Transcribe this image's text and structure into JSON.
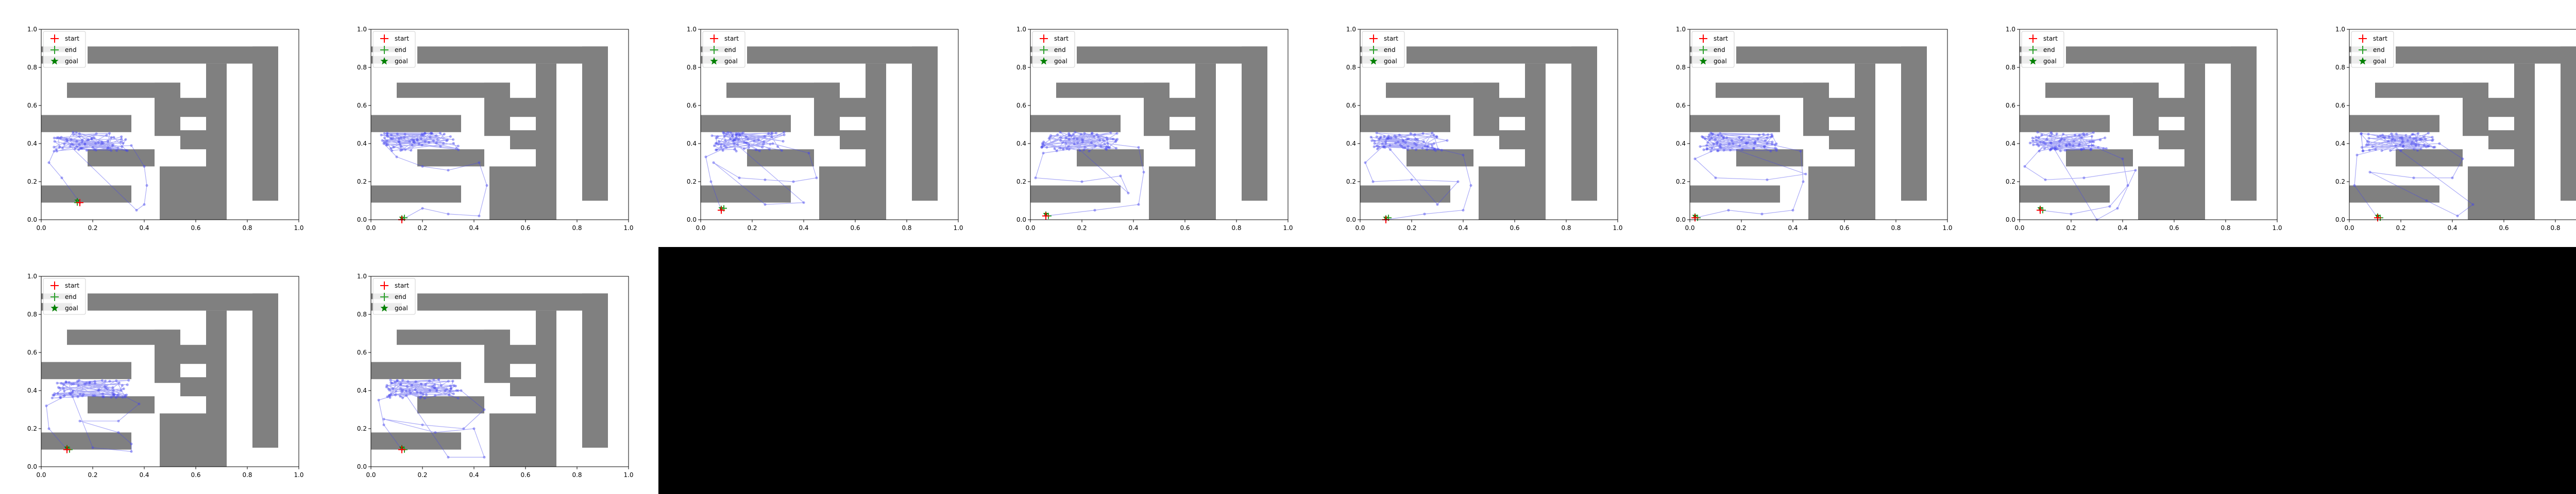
{
  "figure": {
    "panel_count": 10,
    "unused_area_color": "#000000"
  },
  "chart_data": {
    "type": "scatter",
    "title": "",
    "xlabel": "",
    "ylabel": "",
    "xlim": [
      0.0,
      1.0
    ],
    "ylim": [
      0.0,
      1.0
    ],
    "x_ticks": [
      "0.0",
      "0.2",
      "0.4",
      "0.6",
      "0.8",
      "1.0"
    ],
    "y_ticks": [
      "0.0",
      "0.2",
      "0.4",
      "0.6",
      "0.8",
      "1.0"
    ],
    "grid": false,
    "legend_position": "top-left",
    "legend": [
      {
        "label": "start",
        "marker": "plus",
        "color": "#ff0000"
      },
      {
        "label": "end",
        "marker": "plus",
        "color": "#2ca02c"
      },
      {
        "label": "goal",
        "marker": "star",
        "color": "#008000"
      }
    ],
    "colors": {
      "walls": "#808080",
      "trajectory": "#4444ee",
      "start": "#ff0000",
      "end": "#2ca02c",
      "goal": "#008000"
    },
    "walls": [
      {
        "x0": 0.18,
        "x1": 0.92,
        "y0": 0.82,
        "y1": 0.91
      },
      {
        "x0": 0.0,
        "x1": 0.12,
        "y0": 0.82,
        "y1": 0.86
      },
      {
        "x0": 0.0,
        "x1": 0.12,
        "y0": 0.88,
        "y1": 0.91
      },
      {
        "x0": 0.82,
        "x1": 0.92,
        "y0": 0.1,
        "y1": 0.91
      },
      {
        "x0": 0.64,
        "x1": 0.72,
        "y0": 0.1,
        "y1": 0.82
      },
      {
        "x0": 0.1,
        "x1": 0.54,
        "y0": 0.64,
        "y1": 0.72
      },
      {
        "x0": 0.44,
        "x1": 0.54,
        "y0": 0.44,
        "y1": 0.72
      },
      {
        "x0": 0.54,
        "x1": 0.72,
        "y0": 0.54,
        "y1": 0.64
      },
      {
        "x0": 0.54,
        "x1": 0.64,
        "y0": 0.37,
        "y1": 0.47
      },
      {
        "x0": 0.0,
        "x1": 0.35,
        "y0": 0.46,
        "y1": 0.55
      },
      {
        "x0": 0.18,
        "x1": 0.44,
        "y0": 0.28,
        "y1": 0.37
      },
      {
        "x0": 0.0,
        "x1": 0.35,
        "y0": 0.09,
        "y1": 0.18
      },
      {
        "x0": 0.46,
        "x1": 0.72,
        "y0": 0.0,
        "y1": 0.28
      }
    ],
    "panels": [
      {
        "id": 1,
        "start": [
          0.15,
          0.09
        ],
        "end": [
          0.14,
          0.09
        ],
        "goal": [
          0.14,
          0.1
        ],
        "seed": 11,
        "path": [
          [
            0.15,
            0.09
          ],
          [
            0.08,
            0.22
          ],
          [
            0.03,
            0.3
          ],
          [
            0.05,
            0.36
          ],
          [
            0.2,
            0.38
          ],
          [
            0.35,
            0.39
          ],
          [
            0.4,
            0.28
          ],
          [
            0.41,
            0.18
          ],
          [
            0.4,
            0.08
          ],
          [
            0.37,
            0.05
          ]
        ]
      },
      {
        "id": 2,
        "start": [
          0.12,
          0.0
        ],
        "end": [
          0.13,
          0.01
        ],
        "goal": [
          0.12,
          0.01
        ],
        "seed": 23,
        "path": [
          [
            0.12,
            0.0
          ],
          [
            0.2,
            0.06
          ],
          [
            0.3,
            0.03
          ],
          [
            0.42,
            0.02
          ],
          [
            0.45,
            0.18
          ],
          [
            0.42,
            0.3
          ],
          [
            0.3,
            0.26
          ],
          [
            0.2,
            0.28
          ],
          [
            0.1,
            0.33
          ],
          [
            0.05,
            0.4
          ],
          [
            0.15,
            0.41
          ]
        ]
      },
      {
        "id": 3,
        "start": [
          0.08,
          0.05
        ],
        "end": [
          0.09,
          0.06
        ],
        "goal": [
          0.08,
          0.06
        ],
        "seed": 37,
        "path": [
          [
            0.08,
            0.05
          ],
          [
            0.04,
            0.2
          ],
          [
            0.02,
            0.33
          ],
          [
            0.1,
            0.38
          ],
          [
            0.28,
            0.4
          ],
          [
            0.42,
            0.35
          ],
          [
            0.45,
            0.22
          ],
          [
            0.36,
            0.2
          ],
          [
            0.25,
            0.21
          ],
          [
            0.15,
            0.22
          ],
          [
            0.05,
            0.3
          ],
          [
            0.25,
            0.08
          ],
          [
            0.4,
            0.09
          ]
        ]
      },
      {
        "id": 4,
        "start": [
          0.06,
          0.02
        ],
        "end": [
          0.07,
          0.02
        ],
        "goal": [
          0.06,
          0.03
        ],
        "seed": 41,
        "path": [
          [
            0.06,
            0.02
          ],
          [
            0.25,
            0.05
          ],
          [
            0.42,
            0.08
          ],
          [
            0.44,
            0.25
          ],
          [
            0.42,
            0.38
          ],
          [
            0.3,
            0.4
          ],
          [
            0.15,
            0.37
          ],
          [
            0.05,
            0.35
          ],
          [
            0.02,
            0.22
          ],
          [
            0.2,
            0.2
          ],
          [
            0.35,
            0.23
          ],
          [
            0.38,
            0.14
          ]
        ]
      },
      {
        "id": 5,
        "start": [
          0.1,
          0.0
        ],
        "end": [
          0.11,
          0.01
        ],
        "goal": [
          0.1,
          0.01
        ],
        "seed": 53,
        "path": [
          [
            0.1,
            0.0
          ],
          [
            0.25,
            0.03
          ],
          [
            0.4,
            0.05
          ],
          [
            0.43,
            0.18
          ],
          [
            0.4,
            0.34
          ],
          [
            0.28,
            0.38
          ],
          [
            0.1,
            0.4
          ],
          [
            0.02,
            0.3
          ],
          [
            0.05,
            0.2
          ],
          [
            0.2,
            0.21
          ],
          [
            0.38,
            0.2
          ],
          [
            0.3,
            0.08
          ]
        ]
      },
      {
        "id": 6,
        "start": [
          0.02,
          0.01
        ],
        "end": [
          0.03,
          0.01
        ],
        "goal": [
          0.02,
          0.02
        ],
        "seed": 67,
        "path": [
          [
            0.02,
            0.01
          ],
          [
            0.15,
            0.05
          ],
          [
            0.28,
            0.03
          ],
          [
            0.4,
            0.05
          ],
          [
            0.44,
            0.2
          ],
          [
            0.43,
            0.36
          ],
          [
            0.3,
            0.4
          ],
          [
            0.12,
            0.38
          ],
          [
            0.02,
            0.32
          ],
          [
            0.1,
            0.22
          ],
          [
            0.3,
            0.21
          ],
          [
            0.45,
            0.24
          ]
        ]
      },
      {
        "id": 7,
        "start": [
          0.08,
          0.05
        ],
        "end": [
          0.09,
          0.05
        ],
        "goal": [
          0.08,
          0.06
        ],
        "seed": 79,
        "path": [
          [
            0.08,
            0.05
          ],
          [
            0.2,
            0.03
          ],
          [
            0.35,
            0.07
          ],
          [
            0.42,
            0.18
          ],
          [
            0.4,
            0.32
          ],
          [
            0.28,
            0.39
          ],
          [
            0.1,
            0.4
          ],
          [
            0.02,
            0.28
          ],
          [
            0.1,
            0.21
          ],
          [
            0.25,
            0.22
          ],
          [
            0.45,
            0.26
          ],
          [
            0.38,
            0.06
          ],
          [
            0.3,
            0.0
          ]
        ]
      },
      {
        "id": 8,
        "start": [
          0.11,
          0.01
        ],
        "end": [
          0.12,
          0.01
        ],
        "goal": [
          0.11,
          0.02
        ],
        "seed": 83,
        "path": [
          [
            0.11,
            0.01
          ],
          [
            0.02,
            0.18
          ],
          [
            0.03,
            0.34
          ],
          [
            0.18,
            0.39
          ],
          [
            0.35,
            0.4
          ],
          [
            0.44,
            0.32
          ],
          [
            0.4,
            0.22
          ],
          [
            0.25,
            0.22
          ],
          [
            0.08,
            0.25
          ],
          [
            0.3,
            0.1
          ],
          [
            0.42,
            0.02
          ],
          [
            0.48,
            0.08
          ]
        ]
      },
      {
        "id": 9,
        "start": [
          0.1,
          0.09
        ],
        "end": [
          0.11,
          0.09
        ],
        "goal": [
          0.1,
          0.1
        ],
        "seed": 97,
        "path": [
          [
            0.1,
            0.09
          ],
          [
            0.03,
            0.2
          ],
          [
            0.02,
            0.32
          ],
          [
            0.12,
            0.39
          ],
          [
            0.28,
            0.4
          ],
          [
            0.38,
            0.33
          ],
          [
            0.3,
            0.24
          ],
          [
            0.15,
            0.24
          ],
          [
            0.3,
            0.18
          ],
          [
            0.35,
            0.12
          ],
          [
            0.35,
            0.08
          ],
          [
            0.2,
            0.1
          ]
        ]
      },
      {
        "id": 10,
        "start": [
          0.12,
          0.09
        ],
        "end": [
          0.13,
          0.09
        ],
        "goal": [
          0.12,
          0.1
        ],
        "seed": 101,
        "path": [
          [
            0.12,
            0.09
          ],
          [
            0.05,
            0.22
          ],
          [
            0.03,
            0.35
          ],
          [
            0.15,
            0.4
          ],
          [
            0.35,
            0.4
          ],
          [
            0.44,
            0.3
          ],
          [
            0.36,
            0.2
          ],
          [
            0.2,
            0.22
          ],
          [
            0.05,
            0.25
          ],
          [
            0.25,
            0.18
          ],
          [
            0.4,
            0.2
          ],
          [
            0.44,
            0.05
          ],
          [
            0.3,
            0.05
          ]
        ]
      }
    ]
  }
}
